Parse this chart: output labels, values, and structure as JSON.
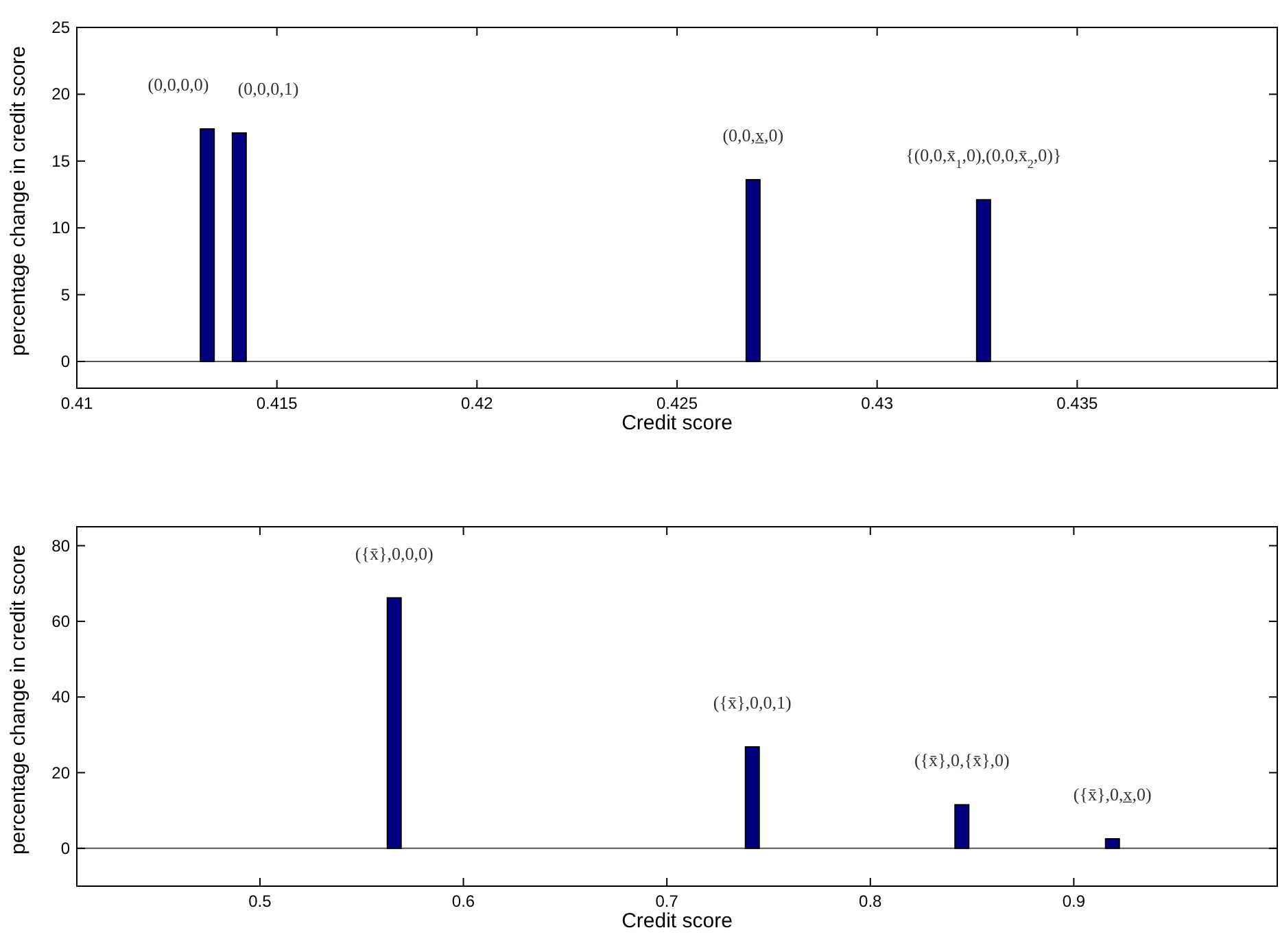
{
  "chart_data": [
    {
      "type": "bar",
      "xlabel": "Credit score",
      "ylabel": "percentage change in credit score",
      "x": [
        0.41326,
        0.41406,
        0.4269,
        0.43266
      ],
      "values": [
        17.4,
        17.1,
        13.6,
        12.1
      ],
      "color": "#000080",
      "xlim": [
        0.41,
        0.44
      ],
      "xticks": [
        0.41,
        0.415,
        0.42,
        0.425,
        0.43,
        0.435
      ],
      "ylim": [
        -2,
        25
      ],
      "yticks": [
        0,
        5,
        10,
        15,
        20,
        25
      ],
      "ref_lines": [
        {
          "axis": "y",
          "value": 0,
          "color": "#555555"
        }
      ],
      "annotations": [
        {
          "text": "(0,0,0,0)",
          "x": 0.41326,
          "y": 17.4
        },
        {
          "text": "(0,0,0,1)",
          "x": 0.41406,
          "y": 17.1
        },
        {
          "text": "(0,0,x̲,0)",
          "x": 0.4269,
          "y": 13.6
        },
        {
          "text": "{(0,0,x̄$_{1}$,0),(0,0,x̄$_{2}$,0)}",
          "x": 0.43266,
          "y": 12.1
        }
      ]
    },
    {
      "type": "bar",
      "xlabel": "Credit score",
      "ylabel": "percentage change in credit score",
      "x": [
        0.566,
        0.742,
        0.845,
        0.919
      ],
      "values": [
        66.2,
        26.8,
        11.5,
        2.5
      ],
      "color": "#000080",
      "xlim": [
        0.41,
        1
      ],
      "xticks": [
        0.5,
        0.6,
        0.7,
        0.8,
        0.9
      ],
      "ylim": [
        -10,
        85
      ],
      "yticks": [
        0,
        20,
        40,
        60,
        80
      ],
      "ref_lines": [
        {
          "axis": "y",
          "value": 0,
          "color": "#555555"
        }
      ],
      "annotations": [
        {
          "text": "({x̄},0,0,0)",
          "x": 0.566,
          "y": 66.2
        },
        {
          "text": "({x̄},0,0,1)",
          "x": 0.742,
          "y": 26.8
        },
        {
          "text": "({x̄},0,{x̄},0)",
          "x": 0.845,
          "y": 11.5
        },
        {
          "text": "({x̄},0,x̲,0)",
          "x": 0.919,
          "y": 2.5
        }
      ]
    }
  ]
}
